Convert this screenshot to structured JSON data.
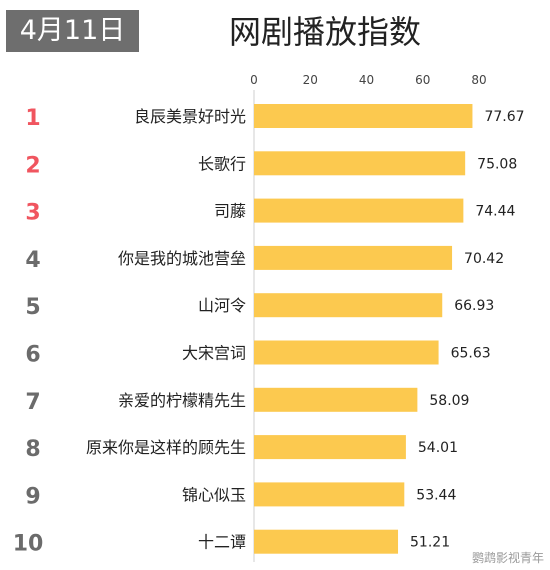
{
  "header": {
    "date": "4月11日",
    "title": "网剧播放指数"
  },
  "watermark": "鹦鹉影视青年",
  "colors": {
    "bar": "#fcc94f",
    "top_rank": "#f0555f",
    "rank": "#6b6b6b",
    "axis": "#cfcfcf",
    "text": "#222222"
  },
  "chart_data": {
    "type": "bar",
    "orientation": "horizontal",
    "title": "网剧播放指数",
    "xlim": [
      0,
      80
    ],
    "ticks": [
      0,
      20,
      40,
      60,
      80
    ],
    "grid": false,
    "ranks": [
      "1",
      "2",
      "3",
      "4",
      "5",
      "6",
      "7",
      "8",
      "9",
      "10"
    ],
    "categories": [
      "良辰美景好时光",
      "长歌行",
      "司藤",
      "你是我的城池营垒",
      "山河令",
      "大宋宫词",
      "亲爱的柠檬精先生",
      "原来你是这样的顾先生",
      "锦心似玉",
      "十二谭"
    ],
    "values": [
      77.67,
      75.08,
      74.44,
      70.42,
      66.93,
      65.63,
      58.09,
      54.01,
      53.44,
      51.21
    ],
    "value_labels": [
      "77.67",
      "75.08",
      "74.44",
      "70.42",
      "66.93",
      "65.63",
      "58.09",
      "54.01",
      "53.44",
      "51.21"
    ]
  }
}
